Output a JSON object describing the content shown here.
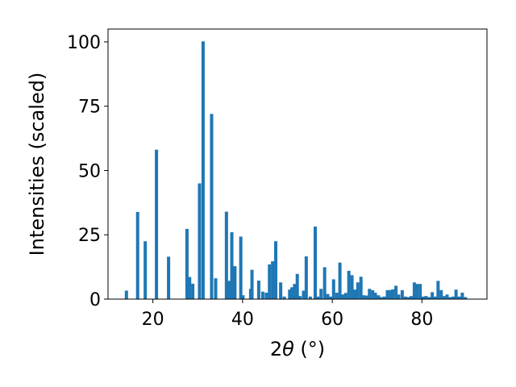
{
  "chart_data": {
    "type": "bar",
    "title": "",
    "xlabel": "2θ (°)",
    "ylabel": "Intensities (scaled)",
    "xlim": [
      10,
      94.5
    ],
    "ylim": [
      0,
      105
    ],
    "x_ticks": [
      20,
      40,
      60,
      80
    ],
    "y_ticks": [
      0,
      25,
      50,
      75,
      100
    ],
    "x_tick_labels": [
      "20",
      "40",
      "60",
      "80"
    ],
    "y_tick_labels": [
      "0",
      "25",
      "50",
      "75",
      "100"
    ],
    "grid": false,
    "legend": false,
    "bar_color": "#1f77b4",
    "bar_width": 0.72,
    "series": [
      {
        "x": [
          14.1,
          16.6,
          18.3,
          20.8,
          23.5,
          27.6,
          28.2,
          28.9,
          30.4,
          31.2,
          33.1,
          34.0,
          36.4,
          37.0,
          37.6,
          38.3,
          39.6,
          40.1,
          41.8,
          42.1,
          43.6,
          44.5,
          45.3,
          46.0,
          46.7,
          47.4,
          48.5,
          49.3,
          50.5,
          51.0,
          51.6,
          52.2,
          52.8,
          53.6,
          54.2,
          55.1,
          56.2,
          56.8,
          57.5,
          58.3,
          59.0,
          59.6,
          60.3,
          61.0,
          61.7,
          62.4,
          63.0,
          63.7,
          64.4,
          65.1,
          65.7,
          66.4,
          67.0,
          67.7,
          68.3,
          69.0,
          69.6,
          70.3,
          70.9,
          71.6,
          72.3,
          72.9,
          73.5,
          74.2,
          74.8,
          75.6,
          76.3,
          77.0,
          77.6,
          78.3,
          78.9,
          79.6,
          80.3,
          80.9,
          81.6,
          82.3,
          83.0,
          83.6,
          84.3,
          85.0,
          85.6,
          86.3,
          87.0,
          87.6,
          88.3,
          89.0,
          89.7
        ],
        "values": [
          3.3,
          33.9,
          22.5,
          58.1,
          16.5,
          27.3,
          8.6,
          6.0,
          45.0,
          100.2,
          72.0,
          8.1,
          34.0,
          7.1,
          26.0,
          12.8,
          24.3,
          1.5,
          4.0,
          11.4,
          7.2,
          2.9,
          2.5,
          13.5,
          14.7,
          22.5,
          6.5,
          1.0,
          3.7,
          4.6,
          5.9,
          9.8,
          1.2,
          3.3,
          16.6,
          1.0,
          28.2,
          1.0,
          4.0,
          12.4,
          2.0,
          1.0,
          7.7,
          2.5,
          14.2,
          1.8,
          2.4,
          11.0,
          9.3,
          3.7,
          6.5,
          8.7,
          1.5,
          1.4,
          4.0,
          3.5,
          2.5,
          1.5,
          0.8,
          1.0,
          3.5,
          3.5,
          3.8,
          5.2,
          1.8,
          3.5,
          1.0,
          0.8,
          1.2,
          6.5,
          5.9,
          5.9,
          1.0,
          1.2,
          0.8,
          2.7,
          1.0,
          7.1,
          3.5,
          1.2,
          1.8,
          0.8,
          1.0,
          3.7,
          1.0,
          2.5,
          0.8
        ]
      }
    ]
  }
}
